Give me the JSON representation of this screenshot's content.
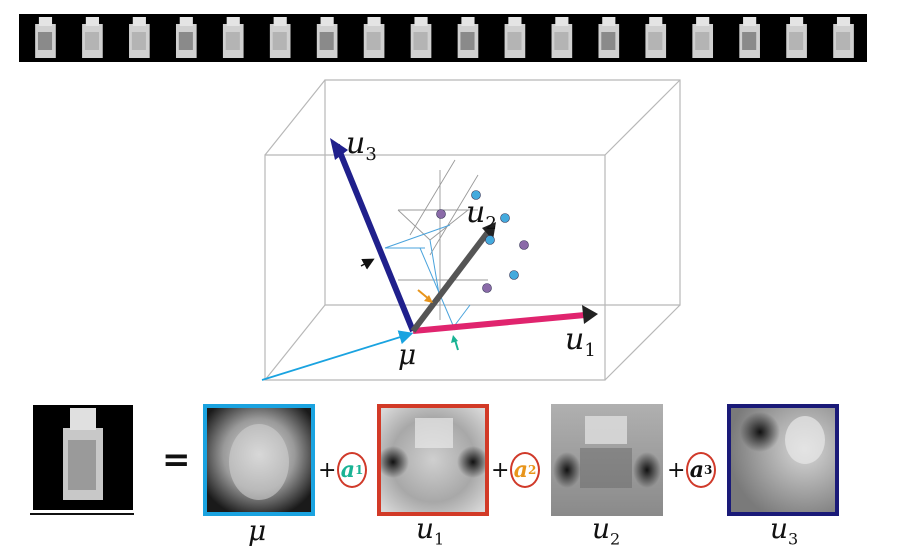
{
  "labels": {
    "u1": "u",
    "u1_sub": "1",
    "u2": "u",
    "u2_sub": "2",
    "u3": "u",
    "u3_sub": "3",
    "mu": "μ"
  },
  "equation": {
    "equals": "=",
    "plus": "+",
    "coefficients": [
      {
        "sym": "a",
        "sub": "1",
        "color": "#19b394"
      },
      {
        "sym": "a",
        "sub": "2",
        "color": "#e8951c"
      },
      {
        "sym": "a",
        "sub": "3",
        "color": "#111111"
      }
    ],
    "bottom_labels": [
      {
        "sym": "μ",
        "sub": ""
      },
      {
        "sym": "u",
        "sub": "1"
      },
      {
        "sym": "u",
        "sub": "2"
      },
      {
        "sym": "u",
        "sub": "3"
      }
    ]
  },
  "colors": {
    "mean_frame": "#1aa3e0",
    "u1_frame": "#d23a27",
    "u2_frame": "#9a9a9a",
    "u3_frame": "#1a1a78",
    "u1_axis": "#e0246e",
    "u2_axis": "#333333",
    "u3_axis": "#20208c",
    "mean_vector": "#1aa3e0",
    "a1": "#19b394",
    "a2": "#e8951c",
    "a3": "#111111"
  },
  "filmstrip": {
    "frame_count": 18
  },
  "points": [
    {
      "color": "#44aadd"
    },
    {
      "color": "#44aadd"
    },
    {
      "color": "#8a6aa8"
    },
    {
      "color": "#8a6aa8"
    },
    {
      "color": "#44aadd"
    },
    {
      "color": "#8a6aa8"
    },
    {
      "color": "#44aadd"
    }
  ]
}
